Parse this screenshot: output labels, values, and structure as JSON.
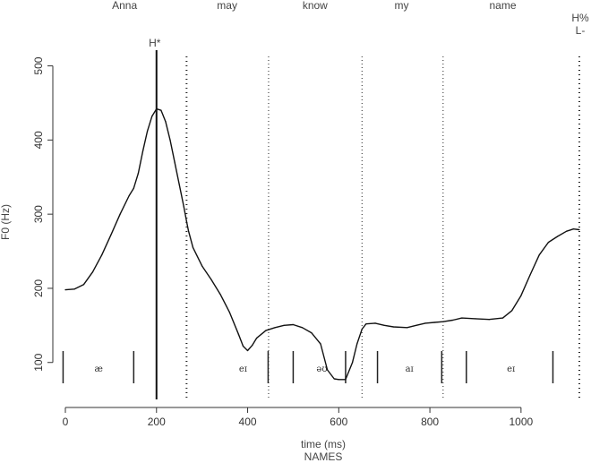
{
  "chart_data": {
    "type": "line",
    "xlabel": "time (ms)",
    "caption": "NAMES",
    "ylabel": "F0 (Hz)",
    "xlim": [
      0,
      1130
    ],
    "ylim": [
      55,
      520
    ],
    "x_ticks": [
      0,
      200,
      400,
      600,
      800,
      1000
    ],
    "y_ticks": [
      100,
      200,
      300,
      400,
      500
    ],
    "grid": false,
    "words": [
      {
        "text": "Anna",
        "x": 130
      },
      {
        "text": "may",
        "x": 355
      },
      {
        "text": "know",
        "x": 548
      },
      {
        "text": "my",
        "x": 738
      },
      {
        "text": "name",
        "x": 960
      }
    ],
    "tones": [
      {
        "text": "H*",
        "x": 196
      },
      {
        "text": "H%",
        "x": 1130
      },
      {
        "text": "L-",
        "x": 1130
      }
    ],
    "boundaries": [
      266,
      446,
      651,
      829,
      1128
    ],
    "pitch_accent_line_x": 200,
    "phones": [
      {
        "text": "æ",
        "x": 73
      },
      {
        "text": "eɪ",
        "x": 390
      },
      {
        "text": "əʊ",
        "x": 563
      },
      {
        "text": "aɪ",
        "x": 755
      },
      {
        "text": "eɪ",
        "x": 978
      }
    ],
    "phone_marks": [
      -5,
      150,
      445,
      500,
      615,
      685,
      826,
      880,
      1070
    ],
    "series": [
      {
        "x": [
          0,
          20,
          40,
          60,
          80,
          100,
          120,
          140,
          150,
          160,
          170,
          180,
          190,
          200,
          210,
          220,
          230,
          240,
          250,
          260,
          266,
          270,
          280,
          300,
          320,
          340,
          360,
          380,
          390,
          400,
          410,
          420,
          440,
          460,
          480,
          500,
          520,
          540,
          560,
          575,
          590,
          600,
          615,
          630,
          640,
          651,
          660,
          680,
          700,
          720,
          750,
          770,
          790,
          810,
          829,
          850,
          870,
          900,
          930,
          960,
          980,
          1000,
          1020,
          1040,
          1060,
          1080,
          1100,
          1115,
          1128
        ],
        "values": [
          198,
          199,
          205,
          222,
          245,
          272,
          300,
          325,
          335,
          355,
          385,
          412,
          432,
          442,
          440,
          425,
          400,
          370,
          340,
          310,
          290,
          278,
          255,
          230,
          212,
          192,
          168,
          138,
          122,
          116,
          123,
          133,
          143,
          147,
          150,
          151,
          147,
          140,
          125,
          90,
          78,
          77,
          77,
          100,
          125,
          145,
          152,
          153,
          150,
          148,
          147,
          150,
          153,
          154,
          155,
          157,
          160,
          159,
          158,
          160,
          170,
          190,
          218,
          245,
          262,
          270,
          277,
          280,
          279
        ]
      }
    ]
  }
}
